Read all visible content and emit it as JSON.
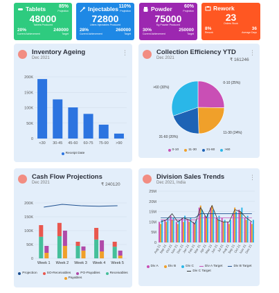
{
  "colors": {
    "tablets": "#2ecb7f",
    "injectables": "#1e88e5",
    "powder": "#9c27b0",
    "rework": "#ff5722",
    "card_bg": "#e3eefa",
    "bar_blue": "#2c74e0"
  },
  "kpis": [
    {
      "key": "tablets",
      "title": "Tablets",
      "icon": "pill-icon",
      "pct": "85%",
      "pct_label": "Projection",
      "value": "48000",
      "sub": "Tablets Produced",
      "left_val": "20%",
      "left_label": "Current Achievement",
      "right_val": "240000",
      "right_label": "Target"
    },
    {
      "key": "injectables",
      "title": "Injectables",
      "icon": "syringe-icon",
      "pct": "110%",
      "pct_label": "Projection",
      "value": "72800",
      "sub": "Litters Injectables Produced",
      "left_val": "28%",
      "left_label": "Current Achievement",
      "right_val": "260000",
      "right_label": "Target"
    },
    {
      "key": "powder",
      "title": "Powder",
      "icon": "powder-icon",
      "pct": "60%",
      "pct_label": "Projection",
      "value": "75000",
      "sub": "Kg Powder Produced",
      "left_val": "30%",
      "left_label": "Current Achievement",
      "right_val": "250000",
      "right_label": "Target"
    },
    {
      "key": "rework",
      "title": "Rework",
      "icon": "rework-icon",
      "pct": "",
      "pct_label": "",
      "value": "23",
      "sub": "Orders Stuck",
      "left_val": "8%",
      "left_label": "Rework",
      "right_val": "36",
      "right_label": "Average Days"
    }
  ],
  "cards": {
    "inventory": {
      "title": "Inventory Ageing",
      "subtitle": "Dec 2021"
    },
    "collection": {
      "title": "Collection Efficiency YTD",
      "subtitle": "Dec 2021",
      "total": "₹ 161246"
    },
    "cashflow": {
      "title": "Cash Flow Projections",
      "subtitle": "Dec 2021",
      "total": "₹ 240120"
    },
    "division": {
      "title": "Division Sales Trends",
      "subtitle": "Dec 2021, India"
    }
  },
  "chart_data": [
    {
      "id": "inventory",
      "type": "bar",
      "categories": [
        "<30",
        "30-45",
        "45-60",
        "60-75",
        "75-90",
        ">90"
      ],
      "values": [
        193,
        127,
        101,
        80,
        45,
        16
      ],
      "yticks": [
        "0",
        "50K",
        "100K",
        "150K",
        "200K"
      ],
      "ylim": [
        0,
        200
      ],
      "series": [
        {
          "name": "Receipt Date",
          "values": [
            193,
            127,
            101,
            80,
            45,
            16
          ]
        }
      ],
      "legend": "bottom",
      "colors": [
        "#2c74e0"
      ]
    },
    {
      "id": "collection",
      "type": "pie",
      "labels": [
        "0-10",
        "11-30",
        "31-60",
        ">60"
      ],
      "values": [
        25,
        24,
        20,
        30
      ],
      "data_labels": [
        "0-10 (25%)",
        "11-30 (24%)",
        "31-60 (20%)",
        ">60 (30%)"
      ],
      "legend": [
        "0-10",
        "11-30",
        "31-60",
        ">60"
      ],
      "colors": [
        "#c94fb5",
        "#f0a02a",
        "#1e63b5",
        "#2ab7e8"
      ]
    },
    {
      "id": "cashflow",
      "type": "bar",
      "categories": [
        "Week 1",
        "Week 2",
        "Week 3",
        "Week 4",
        "Week 5"
      ],
      "yticks": [
        "0",
        "50K",
        "100K",
        "150K",
        "200K"
      ],
      "ylim": [
        0,
        200
      ],
      "projection": [
        185,
        195,
        190,
        188,
        190
      ],
      "series": [
        {
          "name": "Projection",
          "values": [
            185,
            195,
            190,
            188,
            190
          ],
          "color": "#1d4f8f"
        },
        {
          "name": "SO-Receivables",
          "values": [
            120,
            128,
            60,
            110,
            60
          ],
          "color": "#e9574e"
        },
        {
          "name": "PO-Payables",
          "values": [
            25,
            55,
            15,
            40,
            18
          ],
          "color": "#b04aa8"
        },
        {
          "name": "Receivables",
          "values": [
            78,
            80,
            45,
            68,
            42
          ],
          "color": "#45bf9a"
        },
        {
          "name": "Payables",
          "values": [
            20,
            45,
            28,
            25,
            10
          ],
          "color": "#f0a02a"
        }
      ]
    },
    {
      "id": "division",
      "type": "bar",
      "categories": [
        "Aug 21",
        "Sep 21",
        "Oct 21",
        "Nov 21",
        "Dec 21",
        "Jan 21",
        "Feb 21",
        "Mar 21",
        "Apr 21",
        "May 21",
        "Jun 21",
        "Jul 21",
        "Aug 21",
        "Sep 21",
        "Oct 21",
        "Nov 21",
        "Dec 21"
      ],
      "yticks": [
        "0",
        "5M",
        "10M",
        "15M",
        "20M",
        "25M"
      ],
      "ylim": [
        0,
        25
      ],
      "series": [
        {
          "name": "Div A",
          "values": [
            10,
            11,
            13,
            10,
            12,
            11,
            10,
            17,
            13,
            17,
            12,
            12,
            10,
            14,
            16,
            12,
            10
          ],
          "color": "#c94fb5"
        },
        {
          "name": "Div B",
          "values": [
            9,
            10,
            11,
            9,
            10,
            10,
            9,
            18,
            12,
            18,
            11,
            10,
            9,
            17,
            15,
            11,
            9
          ],
          "color": "#f0a02a"
        },
        {
          "name": "Div C",
          "values": [
            11,
            12,
            12,
            11,
            13,
            12,
            11,
            16,
            14,
            16,
            13,
            11,
            11,
            15,
            17,
            13,
            11
          ],
          "color": "#2ab7e8"
        },
        {
          "name": "Div A Target",
          "values": [
            11,
            11,
            11,
            11,
            11,
            11,
            11,
            12,
            12,
            12,
            12,
            12,
            12,
            12,
            12,
            12,
            12
          ],
          "color": "#c94fb5"
        },
        {
          "name": "Div B Target",
          "values": [
            12,
            12,
            12,
            12,
            12,
            12,
            12,
            14,
            14,
            14,
            14,
            14,
            14,
            14,
            14,
            14,
            14
          ],
          "color": "#1d4f8f"
        },
        {
          "name": "Div C Target",
          "values": [
            10,
            11,
            14,
            10,
            12,
            11,
            9,
            17,
            12,
            18,
            11,
            10,
            10,
            16,
            15,
            12,
            10
          ],
          "color": "#333333"
        }
      ]
    }
  ]
}
